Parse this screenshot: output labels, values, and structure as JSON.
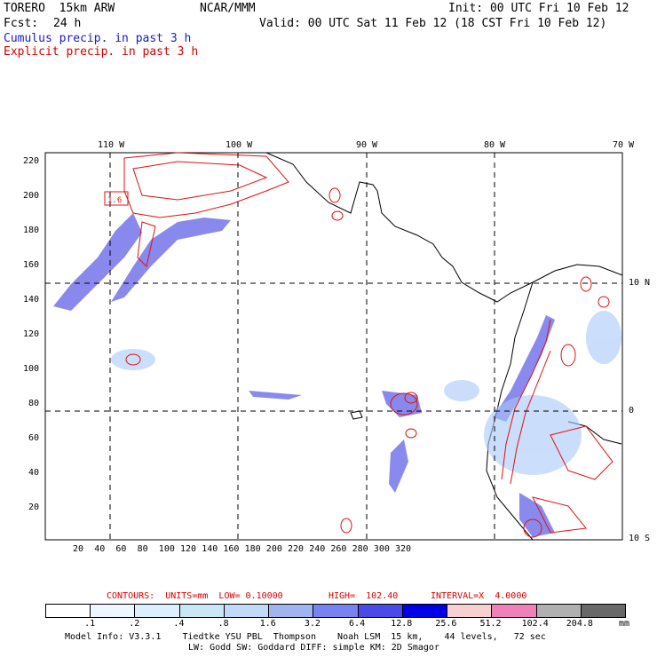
{
  "header": {
    "title_left": "TORERO  15km ARW",
    "org": "NCAR/MMM",
    "init": "Init: 00 UTC Fri 10 Feb 12",
    "fcst_label": "Fcst:",
    "fcst_value": "24 h",
    "valid": "Valid: 00 UTC Sat 11 Feb 12 (18 CST Fri 10 Feb 12)",
    "line_cumulus": "Cumulus precip. in past 3 h",
    "line_explicit": "Explicit precip. in past 3 h"
  },
  "map": {
    "top_lon_labels": [
      "110 W",
      "100 W",
      "90 W",
      "80 W",
      "70 W"
    ],
    "left_y_labels": [
      "220",
      "200",
      "180",
      "160",
      "140",
      "120",
      "100",
      "80",
      "60",
      "40",
      "20"
    ],
    "bottom_x_labels": [
      "20",
      "40",
      "60",
      "80",
      "100",
      "120",
      "140",
      "160",
      "180",
      "200",
      "220",
      "240",
      "260",
      "280",
      "300",
      "320"
    ],
    "right_lat_labels": [
      "10 N",
      "0",
      "10 S"
    ]
  },
  "contours": {
    "label": "CONTOURS:  UNITS=mm  LOW= 0.10000",
    "high": "HIGH=  102.40",
    "interval": "INTERVAL=X  4.0000"
  },
  "legend": {
    "colors": [
      "#ffffff",
      "#eef6ff",
      "#dcefff",
      "#c8e8f8",
      "#c0daf8",
      "#a0b4f0",
      "#7882f0",
      "#4a4ae8",
      "#0000e6",
      "#f8d0d0",
      "#f080b8",
      "#b0b0b0",
      "#686868",
      "#383838",
      "#d8a8f0"
    ],
    "labels": [
      ".1",
      ".2",
      ".4",
      ".8",
      "1.6",
      "3.2",
      "6.4",
      "12.8",
      "25.6",
      "51.2",
      "102.4",
      "204.8"
    ],
    "unit": "mm"
  },
  "footer": {
    "line1": "Model Info: V3.3.1    Tiedtke YSU PBL  Thompson    Noah LSM  15 km,    44 levels,   72 sec",
    "line2": "LW: Godd SW: Goddard DIFF: simple KM: 2D Smagor"
  }
}
